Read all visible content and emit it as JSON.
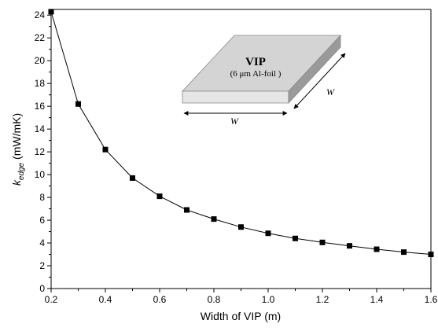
{
  "chart_data": {
    "type": "line",
    "title": "",
    "xlabel": "Width of VIP (m)",
    "ylabel_main": "k",
    "ylabel_sub": "edge",
    "ylabel_unit": " (mW/mK)",
    "xlim": [
      0.2,
      1.6
    ],
    "ylim": [
      0,
      24.5
    ],
    "x_ticks": [
      "0.2",
      "0.4",
      "0.6",
      "0.8",
      "1.0",
      "1.2",
      "1.4",
      "1.6"
    ],
    "y_ticks": [
      "0",
      "2",
      "4",
      "6",
      "8",
      "10",
      "12",
      "14",
      "16",
      "18",
      "20",
      "22",
      "24"
    ],
    "grid": false,
    "marker": "square",
    "series": [
      {
        "x": [
          0.2,
          0.3,
          0.4,
          0.5,
          0.6,
          0.7,
          0.8,
          0.9,
          1.0,
          1.1,
          1.2,
          1.3,
          1.4,
          1.5,
          1.6
        ],
        "values": [
          24.3,
          16.2,
          12.2,
          9.7,
          8.1,
          6.9,
          6.1,
          5.4,
          4.85,
          4.4,
          4.05,
          3.75,
          3.45,
          3.2,
          3.0
        ],
        "color": "#000000"
      }
    ],
    "inset": {
      "title": "VIP",
      "subtitle": "(6 μm Al-foil )",
      "width_label_front": "W",
      "width_label_side": "W"
    }
  }
}
